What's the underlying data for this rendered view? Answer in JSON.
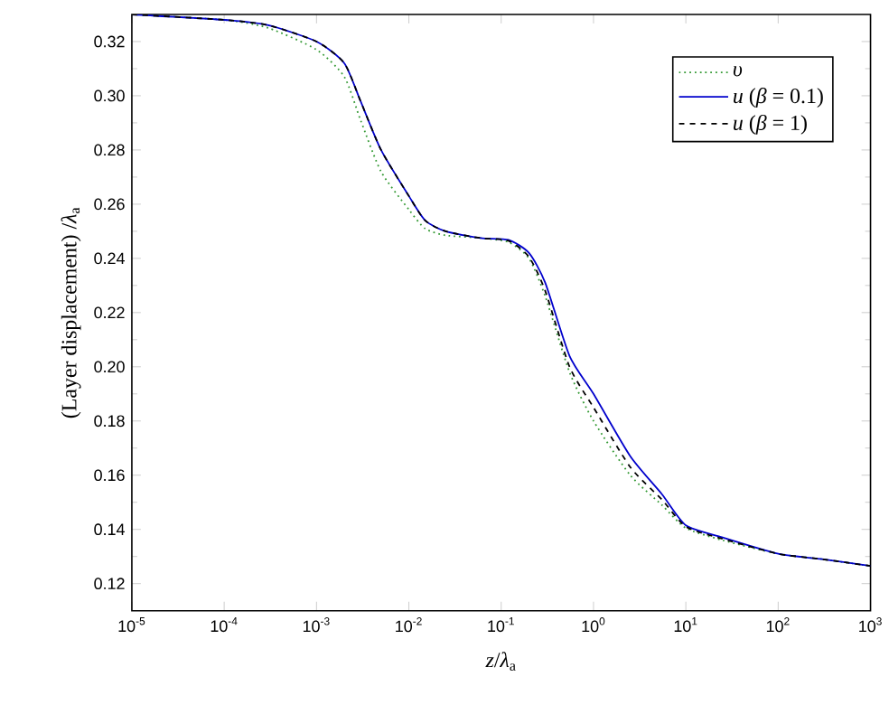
{
  "chart_data": {
    "type": "line",
    "xlabel": "*z*/*λ*$_{a}$",
    "ylabel": "(Layer displacement) /*λ*$_{a}$",
    "log": "x",
    "xlim": [
      1e-05,
      1000
    ],
    "ylim": [
      0.11,
      0.33
    ],
    "xticks": [
      {
        "value": 1e-05,
        "label": "10$^{-5}$"
      },
      {
        "value": 0.0001,
        "label": "10$^{-4}$"
      },
      {
        "value": 0.001,
        "label": "10$^{-3}$"
      },
      {
        "value": 0.01,
        "label": "10$^{-2}$"
      },
      {
        "value": 0.1,
        "label": "10$^{-1}$"
      },
      {
        "value": 1,
        "label": "10$^{0}$"
      },
      {
        "value": 10,
        "label": "10$^{1}$"
      },
      {
        "value": 100,
        "label": "10$^{2}$"
      },
      {
        "value": 1000,
        "label": "10$^{3}$"
      }
    ],
    "yticks": [
      0.12,
      0.14,
      0.16,
      0.18,
      {
        "value": 0.2,
        "label": "0.20"
      },
      0.22,
      0.24,
      0.26,
      0.28,
      {
        "value": 0.3,
        "label": "0.30"
      },
      0.32
    ],
    "legend": "top right",
    "grid": false,
    "marker": "none",
    "x": [
      1e-05,
      0.0001,
      0.0003,
      0.001,
      0.002,
      0.003,
      0.005,
      0.01,
      0.015,
      0.025,
      0.06,
      0.12,
      0.2,
      0.3,
      0.55,
      1,
      2.5,
      5.5,
      10,
      25,
      100,
      300,
      1000
    ],
    "series": [
      {
        "name": "*υ*",
        "color": "#339933",
        "line_style": "dotted",
        "values": [
          0.33,
          0.328,
          0.325,
          0.317,
          0.307,
          0.291,
          0.272,
          0.258,
          0.251,
          0.2485,
          0.2475,
          0.246,
          0.24,
          0.226,
          0.198,
          0.18,
          0.16,
          0.149,
          0.1405,
          0.136,
          0.131,
          0.129,
          0.1265
        ]
      },
      {
        "name": "*u* (*β* = 0.1)",
        "color": "#0000cc",
        "line_style": "solid",
        "values": [
          0.33,
          0.328,
          0.326,
          0.32,
          0.312,
          0.298,
          0.28,
          0.263,
          0.254,
          0.25,
          0.2475,
          0.2468,
          0.242,
          0.231,
          0.204,
          0.19,
          0.167,
          0.153,
          0.1415,
          0.137,
          0.131,
          0.129,
          0.1265
        ]
      },
      {
        "name": "*u* (*β* = 1)",
        "color": "#000000",
        "line_style": "dashed",
        "values": [
          0.33,
          0.328,
          0.326,
          0.32,
          0.312,
          0.298,
          0.28,
          0.263,
          0.254,
          0.25,
          0.2475,
          0.2465,
          0.2405,
          0.228,
          0.2,
          0.185,
          0.163,
          0.151,
          0.141,
          0.1365,
          0.131,
          0.129,
          0.1265
        ]
      }
    ]
  }
}
